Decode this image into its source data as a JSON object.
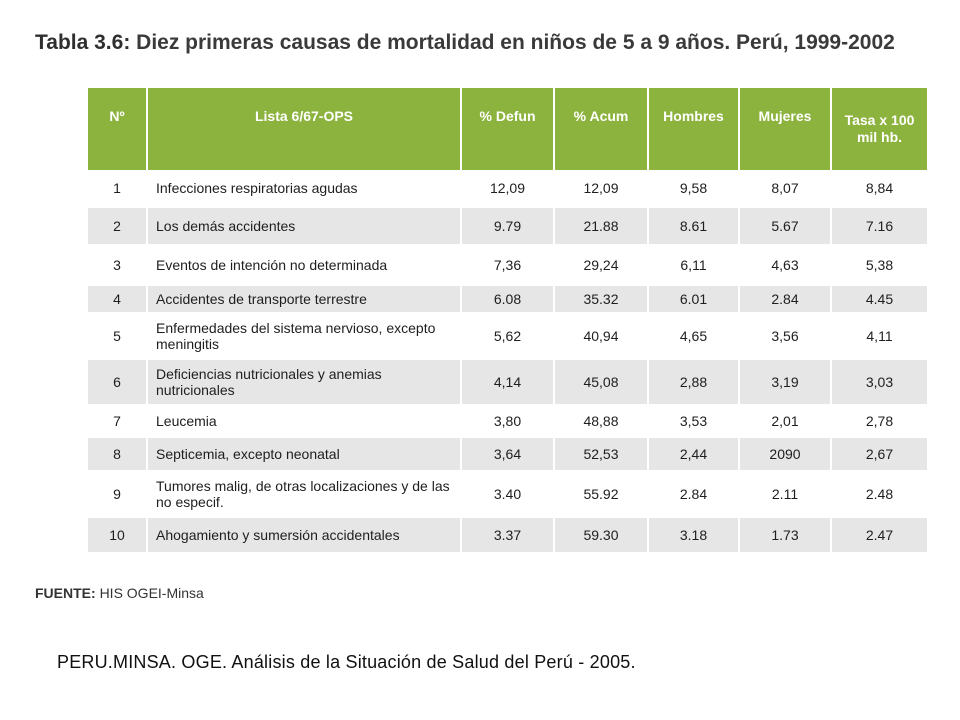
{
  "title": {
    "label": "Tabla 3.6:",
    "text": "Diez primeras causas de mortalidad en niños de 5 a 9 años. Perú, 1999-2002"
  },
  "table": {
    "header_color": "#8db33f",
    "columns": [
      "Nº",
      "Lista 6/67-OPS",
      "% Defun",
      "% Acum",
      "Hombres",
      "Mujeres",
      "Tasa x 100 mil hb."
    ],
    "rows": [
      {
        "n": "1",
        "name": "Infecciones respiratorias agudas",
        "defun": "12,09",
        "acum": "12,09",
        "hombres": "9,58",
        "mujeres": "8,07",
        "tasa": "8,84"
      },
      {
        "n": "2",
        "name": "Los demás accidentes",
        "defun": "9.79",
        "acum": "21.88",
        "hombres": "8.61",
        "mujeres": "5.67",
        "tasa": "7.16"
      },
      {
        "n": "3",
        "name": "Eventos de intención no determinada",
        "defun": "7,36",
        "acum": "29,24",
        "hombres": "6,11",
        "mujeres": "4,63",
        "tasa": "5,38"
      },
      {
        "n": "4",
        "name": "Accidentes de transporte terrestre",
        "defun": "6.08",
        "acum": "35.32",
        "hombres": "6.01",
        "mujeres": "2.84",
        "tasa": "4.45"
      },
      {
        "n": "5",
        "name": "Enfermedades del sistema nervioso, excepto meningitis",
        "defun": "5,62",
        "acum": "40,94",
        "hombres": "4,65",
        "mujeres": "3,56",
        "tasa": "4,11"
      },
      {
        "n": "6",
        "name": "Deficiencias nutricionales y anemias nutricionales",
        "defun": "4,14",
        "acum": "45,08",
        "hombres": "2,88",
        "mujeres": "3,19",
        "tasa": "3,03"
      },
      {
        "n": "7",
        "name": "Leucemia",
        "defun": "3,80",
        "acum": "48,88",
        "hombres": "3,53",
        "mujeres": "2,01",
        "tasa": "2,78"
      },
      {
        "n": "8",
        "name": "Septicemia, excepto neonatal",
        "defun": "3,64",
        "acum": "52,53",
        "hombres": "2,44",
        "mujeres": "2090",
        "tasa": "2,67"
      },
      {
        "n": "9",
        "name": "Tumores malig, de otras localizaciones y de las no especif.",
        "defun": "3.40",
        "acum": "55.92",
        "hombres": "2.84",
        "mujeres": "2.11",
        "tasa": "2.48"
      },
      {
        "n": "10",
        "name": "Ahogamiento y sumersión accidentales",
        "defun": "3.37",
        "acum": "59.30",
        "hombres": "3.18",
        "mujeres": "1.73",
        "tasa": "2.47"
      }
    ]
  },
  "source": {
    "label": "FUENTE:",
    "text": "HIS OGEI-Minsa"
  },
  "citation": "PERU.MINSA. OGE. Análisis de la Situación de Salud del Perú - 2005."
}
